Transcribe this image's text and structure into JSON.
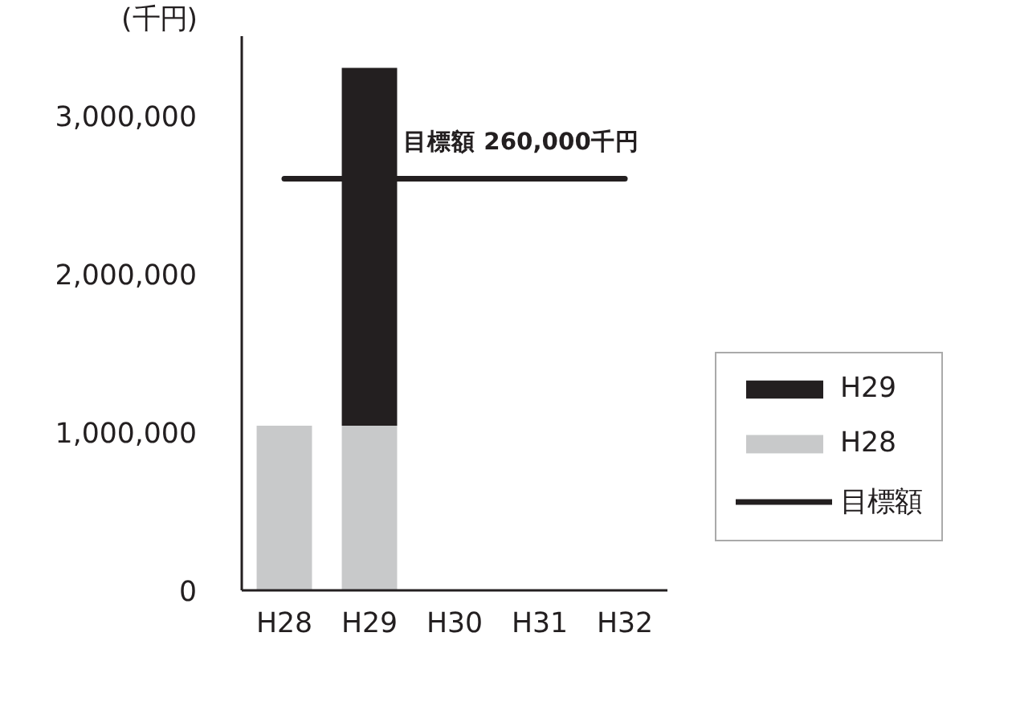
{
  "chart_data": {
    "type": "bar",
    "stacked": true,
    "ylabel": "(千円)",
    "categories": [
      "H28",
      "H29",
      "H30",
      "H31",
      "H32"
    ],
    "series": [
      {
        "name": "H28",
        "color": "#c8c9ca",
        "values": [
          1040000,
          1040000,
          null,
          null,
          null
        ]
      },
      {
        "name": "H29",
        "color": "#231f20",
        "values": [
          null,
          2260000,
          null,
          null,
          null
        ]
      }
    ],
    "ref_lines": [
      {
        "axis": "y",
        "value": 2600000,
        "label": "目標額",
        "color": "#231f20"
      }
    ],
    "annotations": [
      {
        "text": "目標額  260,000千円",
        "x": "H32",
        "y": 2600000
      }
    ],
    "ylim": [
      0,
      3500000
    ],
    "yticks": [
      {
        "value": 0,
        "label": "0"
      },
      {
        "value": 1000000,
        "label": "1,000,000"
      },
      {
        "value": 2000000,
        "label": "2,000,000"
      },
      {
        "value": 3000000,
        "label": "3,000,000"
      }
    ],
    "grid": false,
    "legend": "right"
  }
}
